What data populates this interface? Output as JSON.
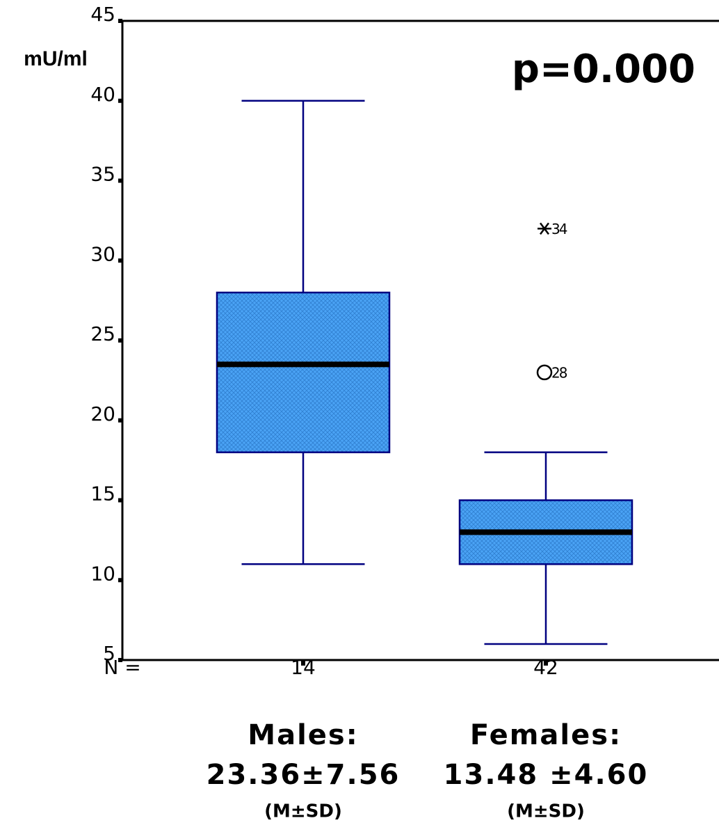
{
  "chart_data": {
    "type": "box",
    "y_label": "mU/ml",
    "annotation": "p=0.000",
    "n_label": "N =",
    "ylim": [
      5,
      45
    ],
    "yticks": [
      5,
      10,
      15,
      20,
      25,
      30,
      35,
      40,
      45
    ],
    "box_color": "#3f9cf2",
    "line_color": "#000080",
    "groups": [
      {
        "name": "Males:",
        "stat": "23.36±7.56",
        "stat_note": "(M±SD)",
        "n": 14,
        "whisker_low": 11,
        "q1": 18,
        "median": 23.5,
        "q3": 28,
        "whisker_high": 40,
        "outliers": []
      },
      {
        "name": "Females:",
        "stat": "13.48 ±4.60",
        "stat_note": "(M±SD)",
        "n": 42,
        "whisker_low": 6,
        "q1": 11,
        "median": 13,
        "q3": 15,
        "whisker_high": 18,
        "outliers": [
          {
            "value": 23,
            "id": 28,
            "marker": "circle"
          },
          {
            "value": 32,
            "id": 34,
            "marker": "star"
          }
        ]
      }
    ]
  }
}
